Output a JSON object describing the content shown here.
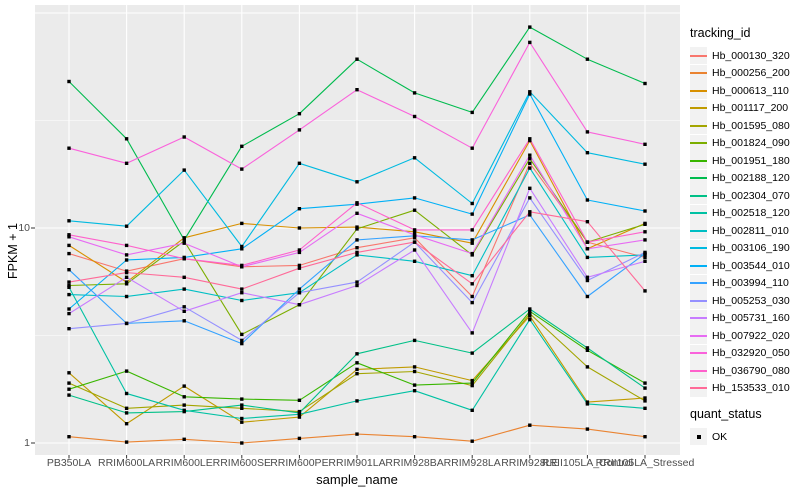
{
  "chart_data": {
    "type": "line",
    "title": "",
    "xlabel": "sample_name",
    "ylabel": "FPKM + 1",
    "y_scale": "log10",
    "ylim": [
      1,
      110
    ],
    "y_tick_labels": [
      {
        "value": 10,
        "label": "10"
      },
      {
        "value": 1,
        "label": "1"
      }
    ],
    "y_major_gridlines": [
      1,
      10,
      100
    ],
    "y_minor_gridlines": [
      3.162,
      31.62
    ],
    "grid": true,
    "legend_position": "right",
    "legend_title": "tracking_id",
    "quant_legend": {
      "title": "quant_status",
      "items": [
        {
          "label": "OK",
          "marker": "black-square"
        }
      ]
    },
    "point_marker": "black-square",
    "colors": {
      "panel_background": "#EBEBEB",
      "grid": "#FFFFFF",
      "tick_text": "#4D4D4D",
      "axis_text": "#000000",
      "marker": "#000000",
      "legend_key_background": "#F2F2F2"
    },
    "categories": [
      "PB350LA",
      "RRIM600LA",
      "RRIM600LE",
      "RRIM600SE",
      "RRIM600PE",
      "RRIM901LA",
      "RRIM928BA",
      "RRIM928LA",
      "RRIM928LE",
      "RRII105LA_Control",
      "RRII105LA_Stressed"
    ],
    "series": [
      {
        "name": "Hb_000130_320",
        "color": "#F8766D",
        "values": [
          7.6,
          6.3,
          7.2,
          6.6,
          6.7,
          8.1,
          9.0,
          4.8,
          20.0,
          8.6,
          7.3
        ]
      },
      {
        "name": "Hb_000256_200",
        "color": "#EA8331",
        "values": [
          1.07,
          1.01,
          1.04,
          1.0,
          1.05,
          1.1,
          1.07,
          1.02,
          1.21,
          1.16,
          1.07
        ]
      },
      {
        "name": "Hb_000613_110",
        "color": "#D89000",
        "values": [
          8.3,
          5.6,
          9.0,
          10.5,
          10.0,
          10.1,
          9.6,
          8.5,
          25.5,
          8.0,
          10.5
        ]
      },
      {
        "name": "Hb_001117_200",
        "color": "#C09B00",
        "values": [
          2.12,
          1.23,
          1.84,
          1.25,
          1.32,
          2.2,
          2.26,
          1.95,
          3.9,
          1.55,
          1.62
        ]
      },
      {
        "name": "Hb_001595_080",
        "color": "#A3A500",
        "values": [
          1.9,
          1.45,
          1.5,
          1.45,
          1.4,
          2.1,
          2.15,
          1.85,
          4.0,
          2.26,
          1.57
        ]
      },
      {
        "name": "Hb_001824_090",
        "color": "#7CAE00",
        "values": [
          5.4,
          5.5,
          8.7,
          3.2,
          4.4,
          9.9,
          12.1,
          7.5,
          21.0,
          8.6,
          10.4
        ]
      },
      {
        "name": "Hb_001951_180",
        "color": "#39B600",
        "values": [
          1.78,
          2.16,
          1.64,
          1.6,
          1.58,
          2.36,
          1.86,
          1.9,
          4.1,
          2.7,
          1.9
        ]
      },
      {
        "name": "Hb_002188_120",
        "color": "#00BB4E",
        "values": [
          48.0,
          26.0,
          8.8,
          24.0,
          34.0,
          61.0,
          42.5,
          34.5,
          86.0,
          61.0,
          47.0
        ]
      },
      {
        "name": "Hb_002304_070",
        "color": "#00C087",
        "values": [
          1.67,
          1.38,
          1.4,
          1.5,
          1.38,
          2.6,
          3.0,
          2.62,
          4.2,
          2.77,
          1.8
        ]
      },
      {
        "name": "Hb_002518_120",
        "color": "#00C1A3",
        "values": [
          5.3,
          1.7,
          1.42,
          1.3,
          1.36,
          1.57,
          1.75,
          1.42,
          3.75,
          1.52,
          1.45
        ]
      },
      {
        "name": "Hb_002811_010",
        "color": "#00BFC4",
        "values": [
          4.9,
          4.8,
          5.2,
          4.6,
          5.0,
          7.5,
          7.0,
          6.0,
          19.0,
          7.3,
          7.5
        ]
      },
      {
        "name": "Hb_003106_190",
        "color": "#00BAE0",
        "values": [
          10.8,
          10.2,
          18.6,
          8.2,
          20.0,
          16.4,
          21.2,
          13.0,
          43.0,
          22.4,
          19.8
        ]
      },
      {
        "name": "Hb_003544_010",
        "color": "#00B0F6",
        "values": [
          4.2,
          7.1,
          7.3,
          8.0,
          12.3,
          12.9,
          13.8,
          11.6,
          42.0,
          13.5,
          12.0
        ]
      },
      {
        "name": "Hb_003994_110",
        "color": "#35A2FF",
        "values": [
          6.4,
          3.6,
          3.7,
          2.9,
          5.2,
          8.8,
          9.2,
          8.8,
          11.5,
          4.8,
          7.6
        ]
      },
      {
        "name": "Hb_005253_030",
        "color": "#9590FF",
        "values": [
          3.4,
          3.6,
          4.3,
          3.0,
          5.0,
          5.6,
          8.6,
          4.5,
          13.8,
          5.7,
          7.7
        ]
      },
      {
        "name": "Hb_005731_160",
        "color": "#C77CFF",
        "values": [
          4.0,
          5.9,
          4.1,
          5.0,
          4.4,
          5.4,
          7.9,
          3.25,
          15.3,
          5.9,
          7.0
        ]
      },
      {
        "name": "Hb_007922_020",
        "color": "#E76BF3",
        "values": [
          9.1,
          7.5,
          8.5,
          6.6,
          7.7,
          11.7,
          9.3,
          7.6,
          21.8,
          8.0,
          8.8
        ]
      },
      {
        "name": "Hb_032920_050",
        "color": "#FA62DB",
        "values": [
          23.5,
          20.0,
          26.5,
          18.8,
          28.6,
          44.0,
          33.0,
          23.5,
          73.0,
          28.0,
          24.5
        ]
      },
      {
        "name": "Hb_036790_080",
        "color": "#FF61CC",
        "values": [
          9.3,
          8.3,
          7.2,
          6.7,
          7.9,
          13.1,
          9.8,
          9.8,
          26.0,
          8.6,
          9.6
        ]
      },
      {
        "name": "Hb_153533_010",
        "color": "#FF6A98",
        "values": [
          5.6,
          6.2,
          5.9,
          5.2,
          6.5,
          7.7,
          8.6,
          5.5,
          11.9,
          10.7,
          5.1
        ]
      }
    ]
  }
}
